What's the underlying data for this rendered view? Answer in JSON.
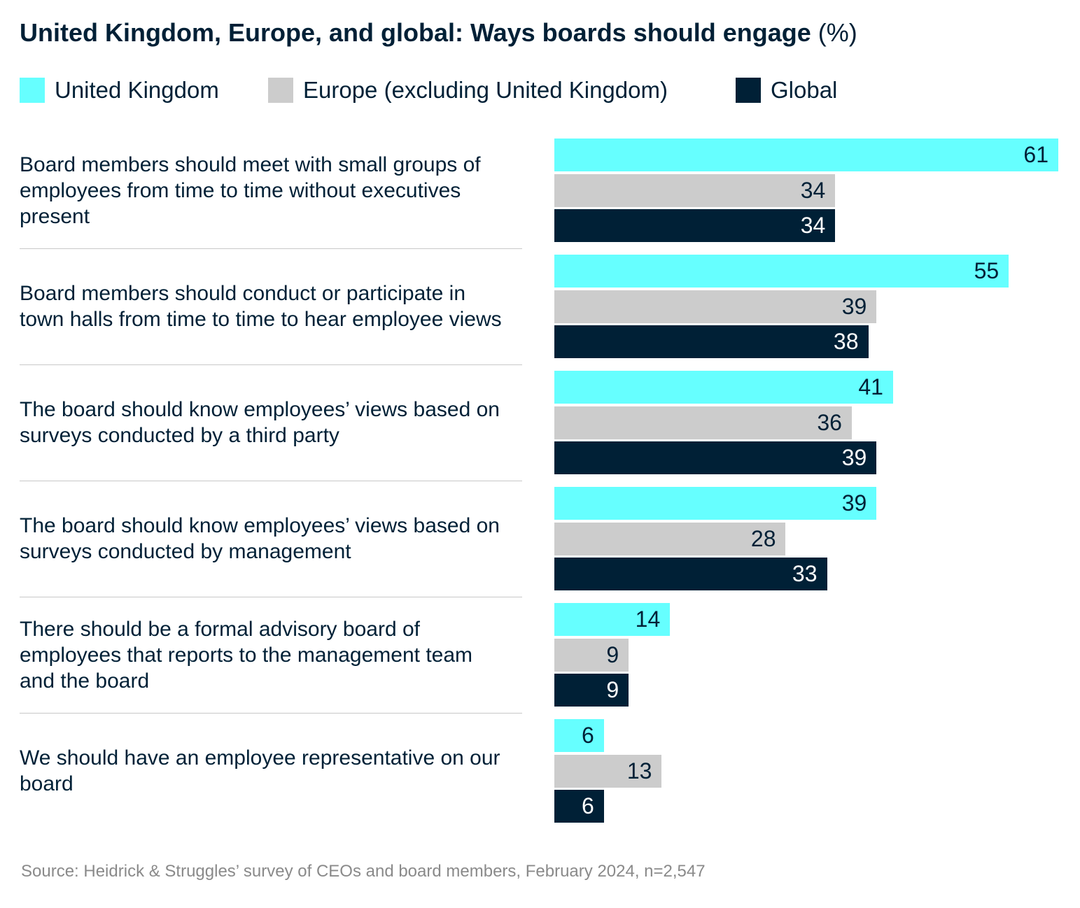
{
  "chart_data": {
    "type": "bar",
    "orientation": "horizontal",
    "title": "United Kingdom, Europe, and global: Ways boards should engage",
    "title_unit": "(%)",
    "categories": [
      "Board members should meet with small groups of employees from time to time without executives present",
      "Board members should conduct or participate in town halls from time to time to hear employee views",
      "The board should know employees’ views based on surveys conducted by a third party",
      "The board should know employees’ views based on surveys conducted by management",
      "There should be a formal advisory board of employees that reports to the management team and the board",
      "We should have an employee representative on our board"
    ],
    "series": [
      {
        "name": "United Kingdom",
        "color": "#66FFFF",
        "values": [
          61,
          55,
          41,
          39,
          14,
          6
        ]
      },
      {
        "name": "Europe (excluding United Kingdom)",
        "color": "#CCCCCC",
        "values": [
          34,
          39,
          36,
          28,
          9,
          13
        ]
      },
      {
        "name": "Global",
        "color": "#002036",
        "values": [
          34,
          38,
          39,
          33,
          9,
          6
        ]
      }
    ],
    "xlim": [
      0,
      61
    ],
    "grid": false,
    "legend_position": "top-left",
    "data_labels": true,
    "source": "Source: Heidrick & Struggles’ survey of CEOs and board members, February 2024, n=2,547"
  }
}
